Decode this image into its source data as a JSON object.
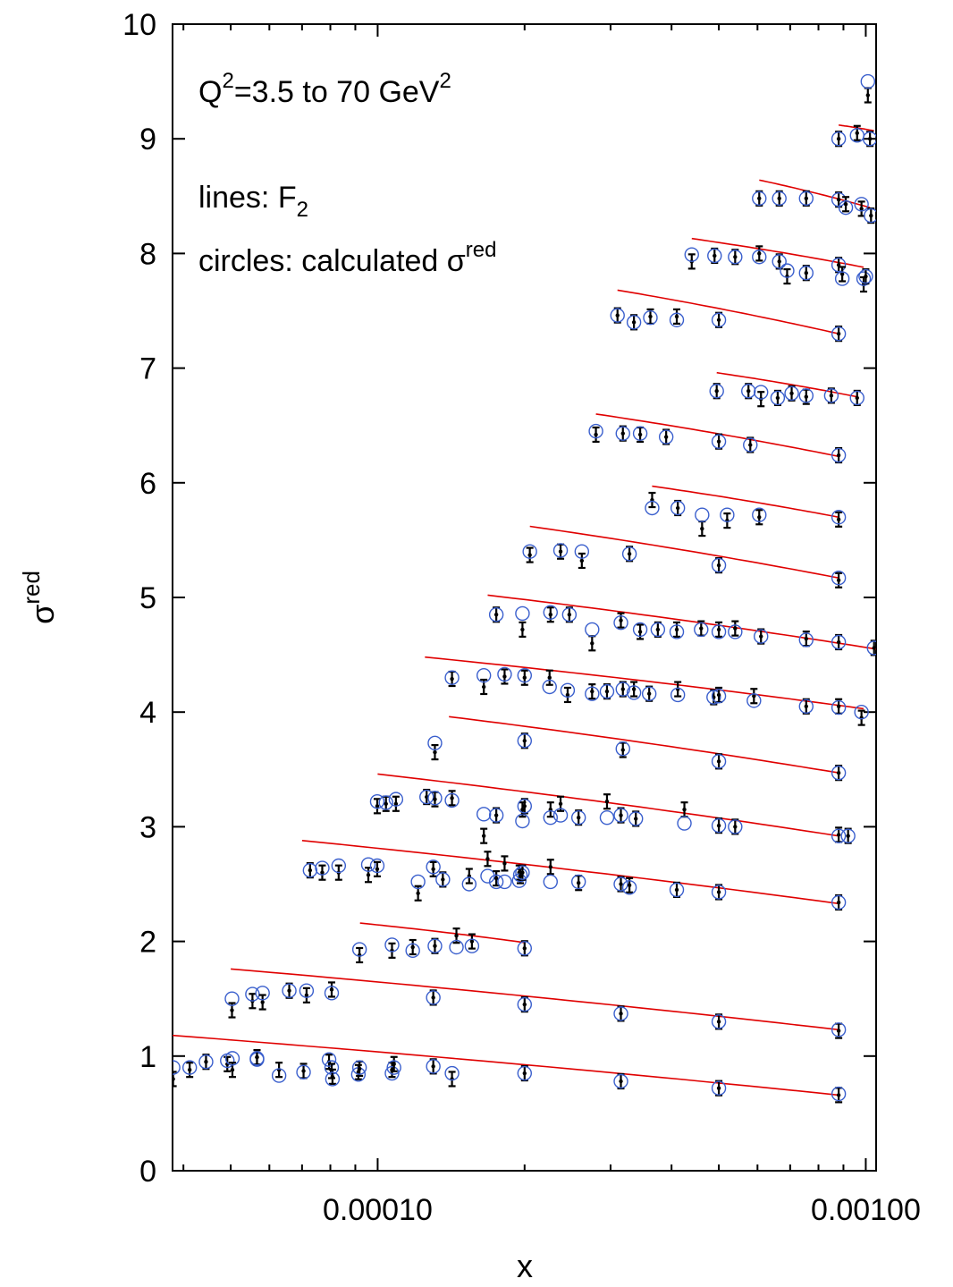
{
  "chart_data": {
    "type": "scatter",
    "x_scale": "log",
    "xlim": [
      3.8e-05,
      0.00105
    ],
    "ylim": [
      0,
      10
    ],
    "xlabel": "x",
    "ylabel": {
      "base": "σ",
      "sup": "red"
    },
    "x_ticks": [
      {
        "value": 0.0001,
        "label": "0.00010"
      },
      {
        "value": 0.001,
        "label": "0.00100"
      }
    ],
    "y_ticks": [
      {
        "value": 0,
        "label": "0"
      },
      {
        "value": 1,
        "label": "1"
      },
      {
        "value": 2,
        "label": "2"
      },
      {
        "value": 3,
        "label": "3"
      },
      {
        "value": 4,
        "label": "4"
      },
      {
        "value": 5,
        "label": "5"
      },
      {
        "value": 6,
        "label": "6"
      },
      {
        "value": 7,
        "label": "7"
      },
      {
        "value": 8,
        "label": "8"
      },
      {
        "value": 9,
        "label": "9"
      },
      {
        "value": 10,
        "label": "10"
      }
    ],
    "annotations": {
      "q2_prefix": "Q",
      "q2_exp": "2",
      "q2_mid": "=3.5 to 70 GeV",
      "q2_unit_exp": "2",
      "lines_prefix": "lines: F",
      "lines_sub": "2",
      "circles_prefix": "circles: calculated σ",
      "circles_sup": "red"
    },
    "colors": {
      "lines": "#e00000",
      "circles": "#3a5fcd",
      "points": "#000000"
    },
    "curves": [
      {
        "x": [
          3.8e-05,
          0.00088
        ],
        "y": [
          1.18,
          0.66
        ]
      },
      {
        "x": [
          5e-05,
          0.00088
        ],
        "y": [
          1.76,
          1.23
        ]
      },
      {
        "x": [
          9.2e-05,
          0.0002
        ],
        "y": [
          2.16,
          1.99
        ]
      },
      {
        "x": [
          7e-05,
          0.00088
        ],
        "y": [
          2.88,
          2.33
        ]
      },
      {
        "x": [
          0.0001,
          0.00088
        ],
        "y": [
          3.46,
          2.92
        ]
      },
      {
        "x": [
          0.00014,
          0.00088
        ],
        "y": [
          3.96,
          3.47
        ]
      },
      {
        "x": [
          0.000125,
          0.00099
        ],
        "y": [
          4.48,
          4.03
        ]
      },
      {
        "x": [
          0.000168,
          0.00105
        ],
        "y": [
          5.02,
          4.55
        ]
      },
      {
        "x": [
          0.000205,
          0.00088
        ],
        "y": [
          5.62,
          5.17
        ]
      },
      {
        "x": [
          0.000365,
          0.00088
        ],
        "y": [
          5.97,
          5.7
        ]
      },
      {
        "x": [
          0.00028,
          0.00088
        ],
        "y": [
          6.6,
          6.23
        ]
      },
      {
        "x": [
          0.000495,
          0.00096
        ],
        "y": [
          6.96,
          6.75
        ]
      },
      {
        "x": [
          0.00031,
          0.00088
        ],
        "y": [
          7.68,
          7.3
        ]
      },
      {
        "x": [
          0.00044,
          0.00099
        ],
        "y": [
          8.13,
          7.88
        ]
      },
      {
        "x": [
          0.000605,
          0.00102
        ],
        "y": [
          8.64,
          8.4
        ]
      },
      {
        "x": [
          0.00088,
          0.00104
        ],
        "y": [
          9.12,
          9.07
        ]
      }
    ],
    "points": [
      [
        3.81e-05,
        0.9,
        0.8
      ],
      [
        4.12e-05,
        0.9,
        0.88
      ],
      [
        4.45e-05,
        0.95,
        0.95
      ],
      [
        4.92e-05,
        0.96,
        0.93
      ],
      [
        5.04e-05,
        0.98,
        0.88
      ],
      [
        5.66e-05,
        0.97,
        0.99
      ],
      [
        6.28e-05,
        0.83,
        0.88
      ],
      [
        7.05e-05,
        0.86,
        0.87
      ],
      [
        7.95e-05,
        0.97,
        0.95
      ],
      [
        8.05e-05,
        0.9,
        0.87
      ],
      [
        8.08e-05,
        0.8,
        0.82
      ],
      [
        9.13e-05,
        0.84,
        0.86
      ],
      [
        9.18e-05,
        0.9,
        0.89
      ],
      [
        0.000107,
        0.85,
        0.88
      ],
      [
        0.000108,
        0.9,
        0.93
      ],
      [
        0.00013,
        0.91,
        0.91
      ],
      [
        0.000142,
        0.85,
        0.8
      ],
      [
        0.0002,
        0.85,
        0.85
      ],
      [
        0.000315,
        0.78,
        0.78
      ],
      [
        0.0005,
        0.72,
        0.72
      ],
      [
        0.00088,
        0.67,
        0.66
      ],
      [
        5.03e-05,
        1.5,
        1.4
      ],
      [
        5.54e-05,
        1.54,
        1.48
      ],
      [
        5.81e-05,
        1.55,
        1.47
      ],
      [
        5.66e-05,
        0.98,
        0.99
      ],
      [
        6.59e-05,
        1.57,
        1.57
      ],
      [
        7.15e-05,
        1.57,
        1.53
      ],
      [
        8.05e-05,
        1.55,
        1.58
      ],
      [
        0.00013,
        1.51,
        1.51
      ],
      [
        0.0002,
        1.45,
        1.45
      ],
      [
        0.000315,
        1.37,
        1.37
      ],
      [
        0.0005,
        1.3,
        1.3
      ],
      [
        0.00088,
        1.23,
        1.22
      ],
      [
        9.18e-05,
        1.93,
        1.88
      ],
      [
        0.000107,
        1.97,
        1.92
      ],
      [
        0.000118,
        1.92,
        1.95
      ],
      [
        0.000131,
        1.96,
        1.96
      ],
      [
        0.000145,
        1.95,
        2.05
      ],
      [
        0.000156,
        1.96,
        2.0
      ],
      [
        0.0002,
        1.94,
        1.94
      ],
      [
        7.27e-05,
        2.62,
        2.62
      ],
      [
        7.7e-05,
        2.64,
        2.6
      ],
      [
        8.32e-05,
        2.66,
        2.6
      ],
      [
        9.57e-05,
        2.67,
        2.58
      ],
      [
        9.98e-05,
        2.66,
        2.63
      ],
      [
        0.000121,
        2.52,
        2.42
      ],
      [
        0.00013,
        2.65,
        2.63
      ],
      [
        0.000136,
        2.54,
        2.54
      ],
      [
        0.000154,
        2.5,
        2.57
      ],
      [
        0.000165,
        3.11,
        2.92
      ],
      [
        0.000168,
        2.57,
        2.72
      ],
      [
        0.000175,
        2.52,
        2.55
      ],
      [
        0.000182,
        2.52,
        2.68
      ],
      [
        0.000195,
        2.53,
        2.6
      ],
      [
        0.000196,
        2.58,
        2.57
      ],
      [
        0.000198,
        2.6,
        2.6
      ],
      [
        0.000226,
        2.52,
        2.65
      ],
      [
        0.000258,
        2.52,
        2.51
      ],
      [
        0.000315,
        2.5,
        2.5
      ],
      [
        0.000328,
        2.47,
        2.49
      ],
      [
        0.00041,
        2.45,
        2.45
      ],
      [
        0.0005,
        2.43,
        2.43
      ],
      [
        0.00088,
        2.34,
        2.34
      ],
      [
        9.98e-05,
        3.22,
        3.18
      ],
      [
        0.000104,
        3.21,
        3.2
      ],
      [
        0.000109,
        3.24,
        3.2
      ],
      [
        0.000126,
        3.26,
        3.26
      ],
      [
        0.000131,
        3.25,
        3.24
      ],
      [
        0.000142,
        3.23,
        3.25
      ],
      [
        0.000175,
        3.1,
        3.1
      ],
      [
        0.000198,
        3.05,
        3.15
      ],
      [
        0.0002,
        3.18,
        3.18
      ],
      [
        0.000226,
        3.08,
        3.15
      ],
      [
        0.000237,
        3.1,
        3.2
      ],
      [
        0.000258,
        3.08,
        3.08
      ],
      [
        0.000295,
        3.08,
        3.22
      ],
      [
        0.000315,
        3.1,
        3.1
      ],
      [
        0.000338,
        3.07,
        3.07
      ],
      [
        0.000425,
        3.03,
        3.15
      ],
      [
        0.0005,
        3.01,
        3.01
      ],
      [
        0.00054,
        3.0,
        3.0
      ],
      [
        0.00088,
        2.92,
        2.93
      ],
      [
        0.00092,
        2.92,
        2.92
      ],
      [
        0.000131,
        3.73,
        3.65
      ],
      [
        0.0002,
        3.75,
        3.75
      ],
      [
        0.000318,
        3.68,
        3.67
      ],
      [
        0.0005,
        3.57,
        3.57
      ],
      [
        0.00088,
        3.47,
        3.47
      ],
      [
        0.000142,
        4.3,
        4.29
      ],
      [
        0.000165,
        4.32,
        4.22
      ],
      [
        0.000182,
        4.33,
        4.31
      ],
      [
        0.0002,
        4.32,
        4.3
      ],
      [
        0.000225,
        4.22,
        4.3
      ],
      [
        0.000245,
        4.19,
        4.15
      ],
      [
        0.000275,
        4.16,
        4.18
      ],
      [
        0.000295,
        4.18,
        4.18
      ],
      [
        0.000318,
        4.2,
        4.2
      ],
      [
        0.000335,
        4.17,
        4.2
      ],
      [
        0.00036,
        4.16,
        4.16
      ],
      [
        0.000412,
        4.15,
        4.2
      ],
      [
        0.000488,
        4.13,
        4.13
      ],
      [
        0.0005,
        4.14,
        4.15
      ],
      [
        0.00059,
        4.1,
        4.14
      ],
      [
        0.000755,
        4.05,
        4.05
      ],
      [
        0.00088,
        4.04,
        4.05
      ],
      [
        0.00098,
        4.0,
        3.95
      ],
      [
        0.000175,
        4.85,
        4.85
      ],
      [
        0.000198,
        4.86,
        4.72
      ],
      [
        0.000226,
        4.87,
        4.85
      ],
      [
        0.000247,
        4.85,
        4.85
      ],
      [
        0.000275,
        4.72,
        4.6
      ],
      [
        0.000315,
        4.78,
        4.8
      ],
      [
        0.000345,
        4.72,
        4.7
      ],
      [
        0.000375,
        4.72,
        4.72
      ],
      [
        0.00041,
        4.7,
        4.72
      ],
      [
        0.00046,
        4.72,
        4.73
      ],
      [
        0.0005,
        4.7,
        4.72
      ],
      [
        0.00054,
        4.7,
        4.73
      ],
      [
        0.00061,
        4.66,
        4.66
      ],
      [
        0.000755,
        4.63,
        4.64
      ],
      [
        0.00088,
        4.61,
        4.61
      ],
      [
        0.00104,
        4.56,
        4.56
      ],
      [
        0.000205,
        5.4,
        5.37
      ],
      [
        0.000237,
        5.41,
        5.4
      ],
      [
        0.000262,
        5.4,
        5.32
      ],
      [
        0.000328,
        5.38,
        5.38
      ],
      [
        0.0005,
        5.28,
        5.28
      ],
      [
        0.00088,
        5.17,
        5.15
      ],
      [
        0.000365,
        5.78,
        5.85
      ],
      [
        0.000412,
        5.78,
        5.78
      ],
      [
        0.000462,
        5.72,
        5.6
      ],
      [
        0.00052,
        5.72,
        5.67
      ],
      [
        0.000605,
        5.72,
        5.7
      ],
      [
        0.00088,
        5.7,
        5.68
      ],
      [
        0.00028,
        6.45,
        6.42
      ],
      [
        0.000318,
        6.43,
        6.43
      ],
      [
        0.000345,
        6.43,
        6.42
      ],
      [
        0.00039,
        6.4,
        6.4
      ],
      [
        0.0005,
        6.36,
        6.36
      ],
      [
        0.00058,
        6.33,
        6.33
      ],
      [
        0.00088,
        6.24,
        6.24
      ],
      [
        0.000495,
        6.8,
        6.8
      ],
      [
        0.000575,
        6.8,
        6.8
      ],
      [
        0.00061,
        6.79,
        6.73
      ],
      [
        0.00066,
        6.74,
        6.74
      ],
      [
        0.000705,
        6.78,
        6.78
      ],
      [
        0.000755,
        6.76,
        6.75
      ],
      [
        0.00085,
        6.76,
        6.76
      ],
      [
        0.00096,
        6.74,
        6.74
      ],
      [
        0.00031,
        7.46,
        7.46
      ],
      [
        0.000335,
        7.4,
        7.4
      ],
      [
        0.000362,
        7.44,
        7.45
      ],
      [
        0.00041,
        7.42,
        7.45
      ],
      [
        0.0005,
        7.42,
        7.42
      ],
      [
        0.00088,
        7.3,
        7.3
      ],
      [
        0.00044,
        7.99,
        7.93
      ],
      [
        0.00049,
        7.98,
        7.98
      ],
      [
        0.00054,
        7.97,
        7.97
      ],
      [
        0.000605,
        7.97,
        8.0
      ],
      [
        0.000665,
        7.93,
        7.93
      ],
      [
        0.00069,
        7.85,
        7.8
      ],
      [
        0.000755,
        7.83,
        7.83
      ],
      [
        0.00088,
        7.9,
        7.9
      ],
      [
        0.000895,
        7.78,
        7.82
      ],
      [
        0.00099,
        7.78,
        7.73
      ],
      [
        0.001,
        7.8,
        7.8
      ],
      [
        0.000605,
        8.48,
        8.48
      ],
      [
        0.000665,
        8.48,
        8.48
      ],
      [
        0.000755,
        8.48,
        8.48
      ],
      [
        0.00088,
        8.47,
        8.47
      ],
      [
        0.00091,
        8.4,
        8.43
      ],
      [
        0.00098,
        8.43,
        8.39
      ],
      [
        0.001025,
        8.33,
        8.33
      ],
      [
        0.00088,
        9.0,
        9.0
      ],
      [
        0.00096,
        9.03,
        9.05
      ],
      [
        0.00102,
        9.0,
        9.0
      ],
      [
        0.00101,
        9.5,
        9.38
      ]
    ]
  }
}
